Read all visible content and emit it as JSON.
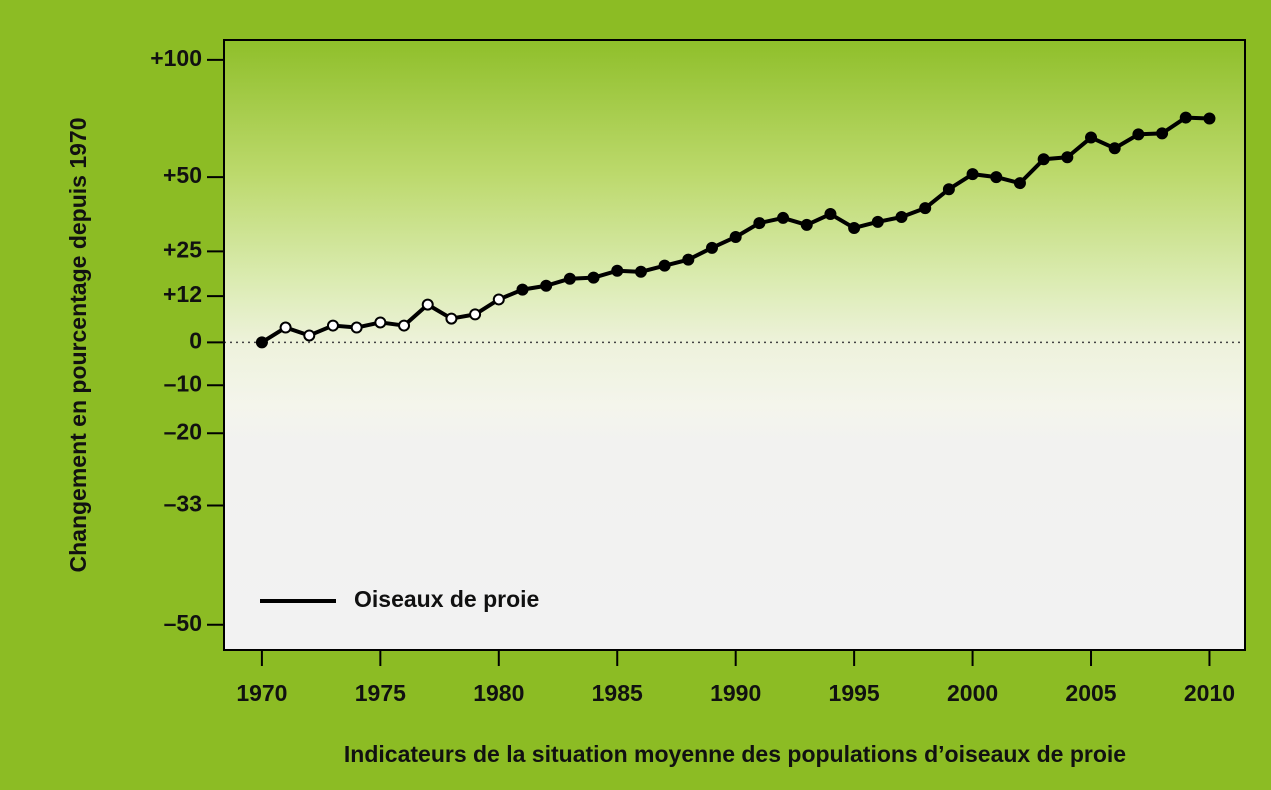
{
  "chart_data": {
    "type": "line",
    "xlabel": "Indicateurs de la situation moyenne des populations d’oiseaux de proie",
    "ylabel": "Changement en pourcentage depuis 1970",
    "yscale": "log-ratio",
    "x": [
      1970,
      1971,
      1972,
      1973,
      1974,
      1975,
      1976,
      1977,
      1978,
      1979,
      1980,
      1981,
      1982,
      1983,
      1984,
      1985,
      1986,
      1987,
      1988,
      1989,
      1990,
      1991,
      1992,
      1993,
      1994,
      1995,
      1996,
      1997,
      1998,
      1999,
      2000,
      2001,
      2002,
      2003,
      2004,
      2005,
      2006,
      2007,
      2008,
      2009,
      2010
    ],
    "series": [
      {
        "name": "Oiseaux de proie",
        "color": "#000000",
        "values": [
          0,
          3.7,
          1.7,
          4.2,
          3.7,
          5.0,
          4.2,
          9.7,
          6.0,
          7.1,
          11.1,
          13.8,
          14.9,
          16.9,
          17.2,
          19.2,
          18.9,
          20.7,
          22.5,
          26.1,
          29.5,
          34.0,
          35.7,
          33.4,
          37.0,
          32.4,
          34.4,
          36.0,
          39.0,
          45.6,
          51.1,
          50.0,
          47.8,
          56.7,
          57.5,
          65.3,
          61.0,
          66.6,
          67.0,
          73.6,
          73.2
        ],
        "marker_styles": [
          "filled",
          "open",
          "open",
          "open",
          "open",
          "open",
          "open",
          "open",
          "open",
          "open",
          "open",
          "filled",
          "filled",
          "filled",
          "filled",
          "filled",
          "filled",
          "filled",
          "filled",
          "filled",
          "filled",
          "filled",
          "filled",
          "filled",
          "filled",
          "filled",
          "filled",
          "filled",
          "filled",
          "filled",
          "filled",
          "filled",
          "filled",
          "filled",
          "filled",
          "filled",
          "filled",
          "filled",
          "filled",
          "filled",
          "filled"
        ]
      }
    ],
    "xlim": [
      1968.4,
      2011.5
    ],
    "xticks": [
      1970,
      1975,
      1980,
      1985,
      1990,
      1995,
      2000,
      2005,
      2010
    ],
    "ylim": [
      -53,
      110
    ],
    "yticks": [
      {
        "value": 100,
        "label": "+100"
      },
      {
        "value": 50,
        "label": "+50"
      },
      {
        "value": 25,
        "label": "+25"
      },
      {
        "value": 12,
        "label": "+12"
      },
      0,
      {
        "value": -10,
        "label": "–10"
      },
      {
        "value": -20,
        "label": "–20"
      },
      {
        "value": -33,
        "label": "–33"
      },
      {
        "value": -50,
        "label": "–50"
      }
    ],
    "zero_line": true,
    "legend": "lower left"
  }
}
